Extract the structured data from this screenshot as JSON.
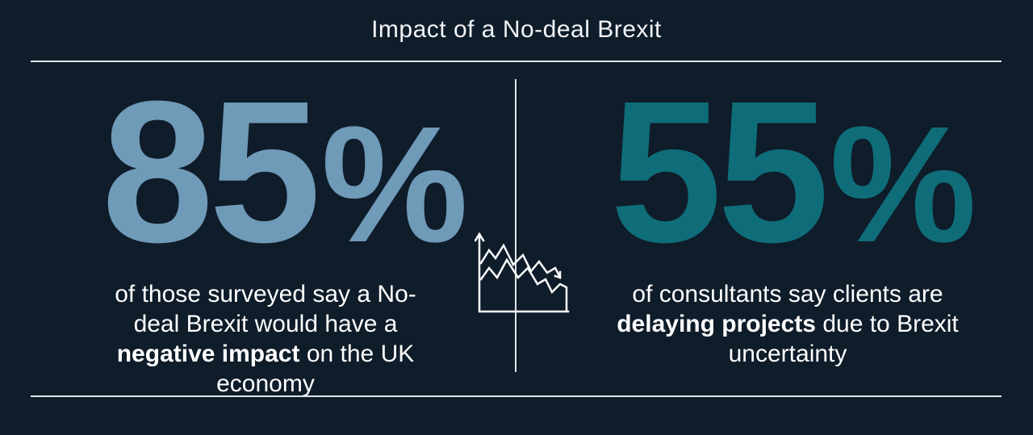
{
  "header": {
    "title": "Impact of a No-deal Brexit"
  },
  "stat_left": {
    "number": "85",
    "percent_sign": "%",
    "text_before": "of those surveyed say a No-deal Brexit would have a ",
    "text_bold": "negative impact",
    "text_after": " on the UK economy"
  },
  "stat_right": {
    "number": "55",
    "percent_sign": "%",
    "text_before": "of consultants say clients are ",
    "text_bold": "delaying projects",
    "text_after": " due to Brexit uncertainty"
  },
  "icon": {
    "name": "declining-chart-icon"
  },
  "colors": {
    "background": "#0f1c2a",
    "left_accent": "#6f9ab8",
    "right_accent": "#0e6d78",
    "text": "#ffffff"
  }
}
